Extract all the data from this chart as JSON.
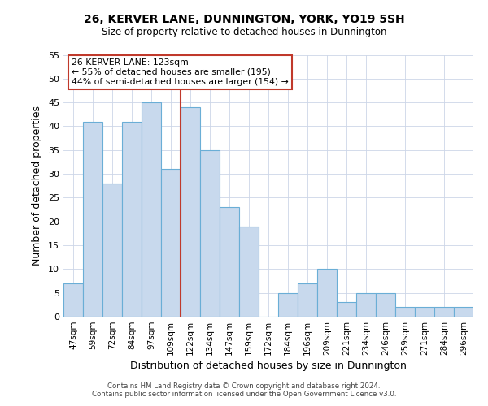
{
  "title": "26, KERVER LANE, DUNNINGTON, YORK, YO19 5SH",
  "subtitle": "Size of property relative to detached houses in Dunnington",
  "xlabel": "Distribution of detached houses by size in Dunnington",
  "ylabel": "Number of detached properties",
  "bar_labels": [
    "47sqm",
    "59sqm",
    "72sqm",
    "84sqm",
    "97sqm",
    "109sqm",
    "122sqm",
    "134sqm",
    "147sqm",
    "159sqm",
    "172sqm",
    "184sqm",
    "196sqm",
    "209sqm",
    "221sqm",
    "234sqm",
    "246sqm",
    "259sqm",
    "271sqm",
    "284sqm",
    "296sqm"
  ],
  "bar_values": [
    7,
    41,
    28,
    41,
    45,
    31,
    44,
    35,
    23,
    19,
    0,
    5,
    7,
    10,
    3,
    5,
    5,
    2,
    2,
    2,
    2
  ],
  "bar_color": "#c8d9ed",
  "bar_edge_color": "#6aaed6",
  "highlight_bar_index": 6,
  "highlight_bar_edge_color": "#c0392b",
  "ylim": [
    0,
    55
  ],
  "yticks": [
    0,
    5,
    10,
    15,
    20,
    25,
    30,
    35,
    40,
    45,
    50,
    55
  ],
  "annotation_title": "26 KERVER LANE: 123sqm",
  "annotation_line1": "← 55% of detached houses are smaller (195)",
  "annotation_line2": "44% of semi-detached houses are larger (154) →",
  "annotation_box_color": "#c0392b",
  "footer_line1": "Contains HM Land Registry data © Crown copyright and database right 2024.",
  "footer_line2": "Contains public sector information licensed under the Open Government Licence v3.0.",
  "bg_color": "#ffffff",
  "grid_color": "#ccd6e8"
}
